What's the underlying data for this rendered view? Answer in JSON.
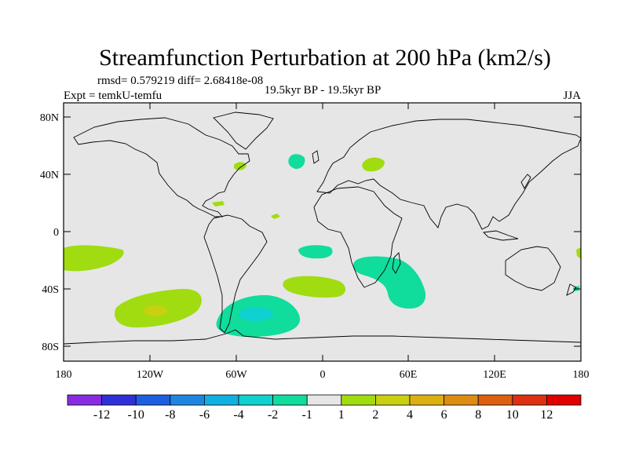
{
  "title": "Streamfunction Perturbation at 200 hPa (km2/s)",
  "stats": "rmsd= 0.579219  diff= 2.68418e-08",
  "experiment": "Expt = temkU-temfu",
  "period": "19.5kyr BP - 19.5kyr BP",
  "season": "JJA",
  "lat_labels": [
    "80N",
    "40N",
    "0",
    "40S",
    "80S"
  ],
  "lon_labels": [
    "180",
    "120W",
    "60W",
    "0",
    "60E",
    "120E",
    "180"
  ],
  "colorbar": {
    "labels": [
      "-12",
      "-10",
      "-8",
      "-6",
      "-4",
      "-2",
      "-1",
      "1",
      "2",
      "4",
      "6",
      "8",
      "10",
      "12"
    ],
    "colors": [
      "#8a2be2",
      "#3030d8",
      "#1c5fe0",
      "#1e86e0",
      "#10b0e0",
      "#10d0d0",
      "#10dc9c",
      "#e6e6e6",
      "#a0dc10",
      "#c8d010",
      "#dcb010",
      "#dc8c10",
      "#dc6010",
      "#dc3010",
      "#e00000"
    ]
  },
  "map_colors": {
    "background": "#e6e6e6",
    "neg_1_2": "#10dc9c",
    "neg_2_4": "#10d0d0",
    "pos_1_2": "#a0dc10",
    "pos_2_4": "#c8d010",
    "coast": "#000000"
  }
}
